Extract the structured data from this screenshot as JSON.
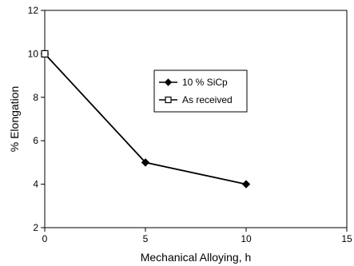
{
  "chart_data": {
    "type": "line",
    "title": "",
    "xlabel": "Mechanical Alloying, h",
    "ylabel": "% Elongation",
    "xlim": [
      0,
      15
    ],
    "ylim": [
      2,
      12
    ],
    "xticks": [
      "0",
      "5",
      "10",
      "15"
    ],
    "yticks": [
      "2",
      "4",
      "6",
      "8",
      "10",
      "12"
    ],
    "grid": false,
    "legend_position": "center-right",
    "series": [
      {
        "name": "10 % SiCp",
        "marker": "filled-diamond",
        "color": "#000000",
        "x": [
          0,
          5,
          10
        ],
        "y": [
          10,
          5,
          4
        ]
      },
      {
        "name": "As received",
        "marker": "open-square",
        "color": "#000000",
        "x": [
          0
        ],
        "y": [
          10
        ]
      }
    ]
  }
}
